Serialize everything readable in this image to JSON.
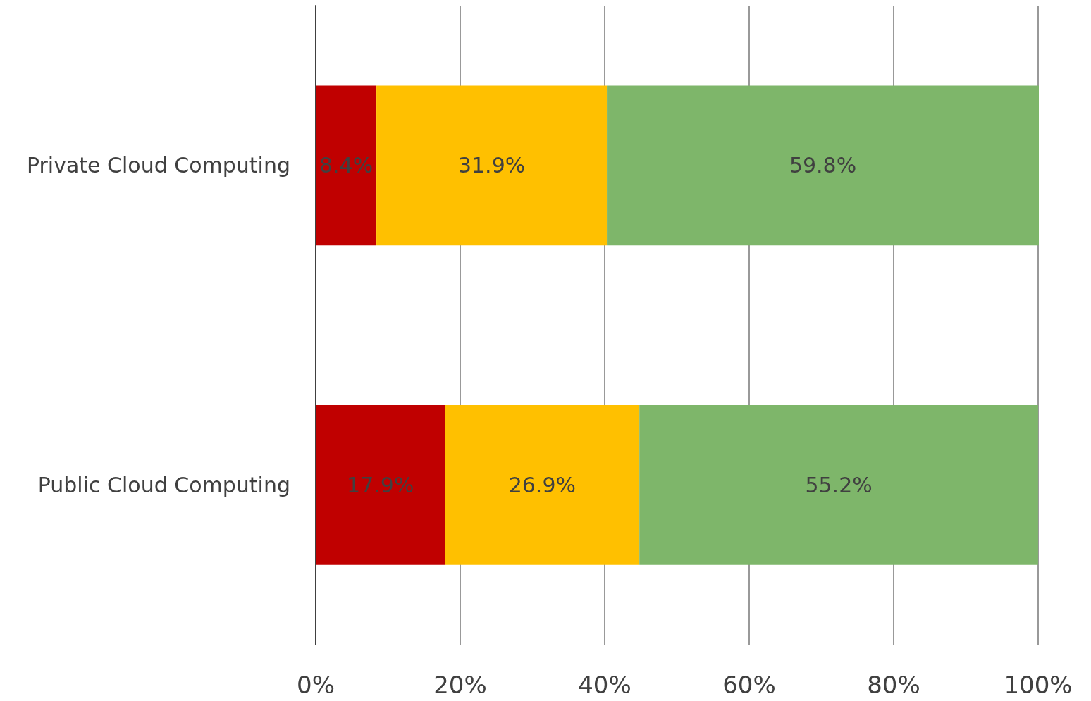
{
  "chart_data": {
    "type": "bar",
    "orientation": "horizontal",
    "stacked": true,
    "categories": [
      "Private Cloud Computing",
      "Public Cloud Computing"
    ],
    "series": [
      {
        "color": "#c00000",
        "values": [
          8.4,
          17.9
        ],
        "value_labels": [
          "8.4%",
          "17.9%"
        ]
      },
      {
        "color": "#ffc000",
        "values": [
          31.9,
          26.9
        ],
        "value_labels": [
          "31.9%",
          "26.9%"
        ]
      },
      {
        "color": "#7eb66a",
        "values": [
          59.8,
          55.2
        ],
        "value_labels": [
          "59.8%",
          "55.2%"
        ]
      }
    ],
    "xlim": [
      0,
      100.1
    ],
    "xticks": [
      {
        "value": 0,
        "label": "0%"
      },
      {
        "value": 20,
        "label": "20%"
      },
      {
        "value": 40,
        "label": "40%"
      },
      {
        "value": 60,
        "label": "60%"
      },
      {
        "value": 80,
        "label": "80%"
      },
      {
        "value": 100,
        "label": "100%"
      }
    ],
    "grid": "x"
  }
}
